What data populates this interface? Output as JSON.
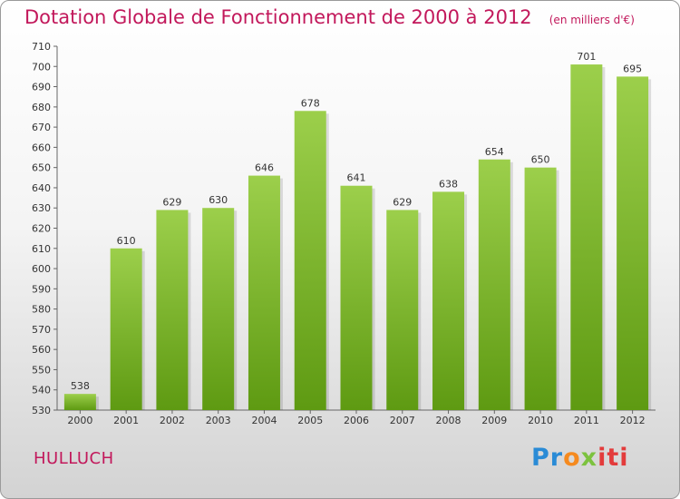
{
  "title": "Dotation Globale de Fonctionnement de 2000 à 2012",
  "unit": "(en milliers d'€)",
  "commune": "HULLUCH",
  "logo": {
    "p1": "Pr",
    "p2": "o",
    "p3": "x",
    "p4": "iti"
  },
  "colors": {
    "bar_top": "#9ccf4b",
    "bar_bottom": "#5e9a12",
    "title": "#c2185b"
  },
  "chart_data": {
    "type": "bar",
    "categories": [
      "2000",
      "2001",
      "2002",
      "2003",
      "2004",
      "2005",
      "2006",
      "2007",
      "2008",
      "2009",
      "2010",
      "2011",
      "2012"
    ],
    "values": [
      538,
      610,
      629,
      630,
      646,
      678,
      641,
      629,
      638,
      654,
      650,
      701,
      695
    ],
    "title": "Dotation Globale de Fonctionnement de 2000 à 2012",
    "ylim": [
      530,
      710
    ],
    "yticks": [
      530,
      540,
      550,
      560,
      570,
      580,
      590,
      600,
      610,
      620,
      630,
      640,
      650,
      660,
      670,
      680,
      690,
      700,
      710
    ],
    "grid": false
  }
}
